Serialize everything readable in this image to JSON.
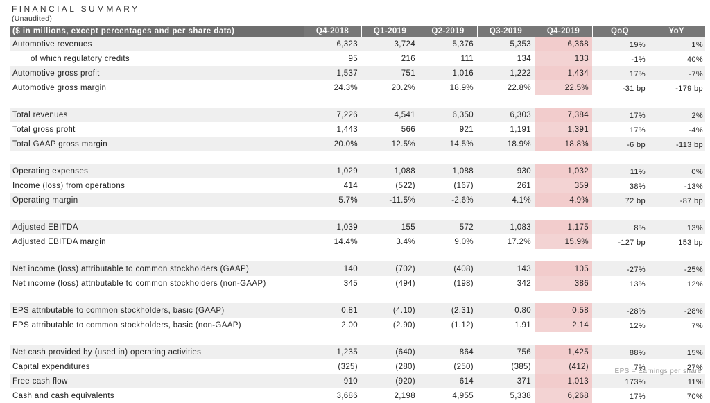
{
  "title": "FINANCIAL SUMMARY",
  "subtitle": "(Unaudited)",
  "header": {
    "label": "($ in millions, except percentages and per share data)",
    "columns": [
      "Q4-2018",
      "Q1-2019",
      "Q2-2019",
      "Q3-2019",
      "Q4-2019",
      "QoQ",
      "YoY"
    ]
  },
  "colors": {
    "header_bg": "#777777",
    "highlight": "#f3d3d3",
    "row_shade": "#efefef"
  },
  "groups": [
    {
      "rows": [
        {
          "label": "Automotive revenues",
          "indent": false,
          "values": [
            "6,323",
            "3,724",
            "5,376",
            "5,353",
            "6,368"
          ],
          "qoq": "19%",
          "yoy": "1%"
        },
        {
          "label": "of which regulatory credits",
          "indent": true,
          "values": [
            "95",
            "216",
            "111",
            "134",
            "133"
          ],
          "qoq": "-1%",
          "yoy": "40%"
        },
        {
          "label": "Automotive gross profit",
          "indent": false,
          "values": [
            "1,537",
            "751",
            "1,016",
            "1,222",
            "1,434"
          ],
          "qoq": "17%",
          "yoy": "-7%"
        },
        {
          "label": "Automotive gross margin",
          "indent": false,
          "values": [
            "24.3%",
            "20.2%",
            "18.9%",
            "22.8%",
            "22.5%"
          ],
          "qoq": "-31 bp",
          "yoy": "-179 bp"
        }
      ]
    },
    {
      "rows": [
        {
          "label": "Total revenues",
          "indent": false,
          "values": [
            "7,226",
            "4,541",
            "6,350",
            "6,303",
            "7,384"
          ],
          "qoq": "17%",
          "yoy": "2%"
        },
        {
          "label": "Total gross profit",
          "indent": false,
          "values": [
            "1,443",
            "566",
            "921",
            "1,191",
            "1,391"
          ],
          "qoq": "17%",
          "yoy": "-4%"
        },
        {
          "label": "Total GAAP gross margin",
          "indent": false,
          "values": [
            "20.0%",
            "12.5%",
            "14.5%",
            "18.9%",
            "18.8%"
          ],
          "qoq": "-6 bp",
          "yoy": "-113 bp"
        }
      ]
    },
    {
      "rows": [
        {
          "label": "Operating expenses",
          "indent": false,
          "values": [
            "1,029",
            "1,088",
            "1,088",
            "930",
            "1,032"
          ],
          "qoq": "11%",
          "yoy": "0%"
        },
        {
          "label": "Income (loss) from operations",
          "indent": false,
          "values": [
            "414",
            "(522)",
            "(167)",
            "261",
            "359"
          ],
          "qoq": "38%",
          "yoy": "-13%"
        },
        {
          "label": "Operating margin",
          "indent": false,
          "values": [
            "5.7%",
            "-11.5%",
            "-2.6%",
            "4.1%",
            "4.9%"
          ],
          "qoq": "72 bp",
          "yoy": "-87 bp"
        }
      ]
    },
    {
      "rows": [
        {
          "label": "Adjusted EBITDA",
          "indent": false,
          "values": [
            "1,039",
            "155",
            "572",
            "1,083",
            "1,175"
          ],
          "qoq": "8%",
          "yoy": "13%"
        },
        {
          "label": "Adjusted EBITDA margin",
          "indent": false,
          "values": [
            "14.4%",
            "3.4%",
            "9.0%",
            "17.2%",
            "15.9%"
          ],
          "qoq": "-127 bp",
          "yoy": "153 bp"
        }
      ]
    },
    {
      "rows": [
        {
          "label": "Net income (loss) attributable to common stockholders (GAAP)",
          "indent": false,
          "values": [
            "140",
            "(702)",
            "(408)",
            "143",
            "105"
          ],
          "qoq": "-27%",
          "yoy": "-25%"
        },
        {
          "label": "Net income (loss) attributable to common stockholders (non-GAAP)",
          "indent": false,
          "values": [
            "345",
            "(494)",
            "(198)",
            "342",
            "386"
          ],
          "qoq": "13%",
          "yoy": "12%"
        }
      ]
    },
    {
      "rows": [
        {
          "label": "EPS attributable to common stockholders, basic (GAAP)",
          "indent": false,
          "values": [
            "0.81",
            "(4.10)",
            "(2.31)",
            "0.80",
            "0.58"
          ],
          "qoq": "-28%",
          "yoy": "-28%"
        },
        {
          "label": "EPS attributable to common stockholders, basic (non-GAAP)",
          "indent": false,
          "values": [
            "2.00",
            "(2.90)",
            "(1.12)",
            "1.91",
            "2.14"
          ],
          "qoq": "12%",
          "yoy": "7%"
        }
      ]
    },
    {
      "rows": [
        {
          "label": "Net cash provided by (used in) operating activities",
          "indent": false,
          "values": [
            "1,235",
            "(640)",
            "864",
            "756",
            "1,425"
          ],
          "qoq": "88%",
          "yoy": "15%"
        },
        {
          "label": "Capital expenditures",
          "indent": false,
          "values": [
            "(325)",
            "(280)",
            "(250)",
            "(385)",
            "(412)"
          ],
          "qoq": "7%",
          "yoy": "27%"
        },
        {
          "label": "Free cash flow",
          "indent": false,
          "values": [
            "910",
            "(920)",
            "614",
            "371",
            "1,013"
          ],
          "qoq": "173%",
          "yoy": "11%"
        },
        {
          "label": "Cash and cash equivalents",
          "indent": false,
          "values": [
            "3,686",
            "2,198",
            "4,955",
            "5,338",
            "6,268"
          ],
          "qoq": "17%",
          "yoy": "70%"
        }
      ]
    }
  ],
  "footnote": "EPS = Earnings per share"
}
